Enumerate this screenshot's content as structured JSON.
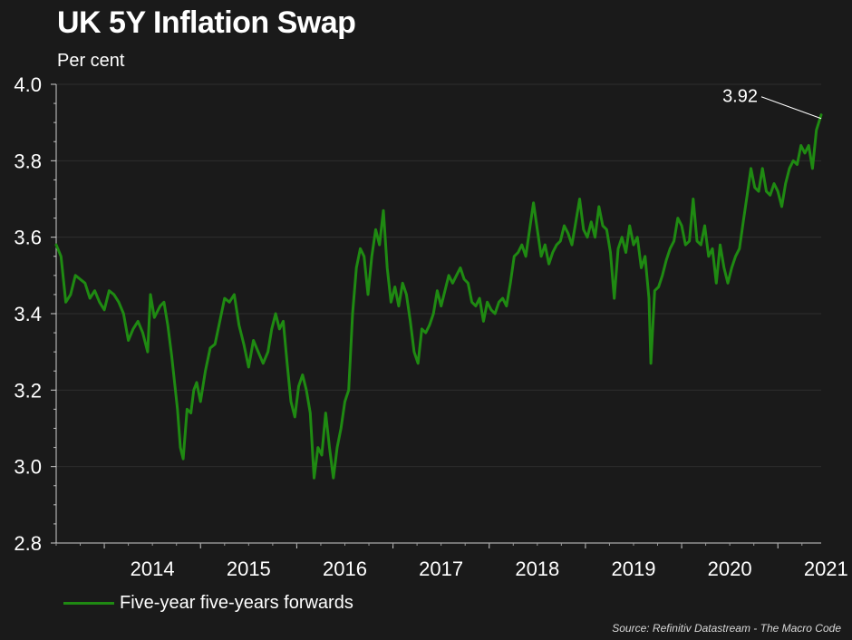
{
  "chart_data": {
    "type": "line",
    "title": "UK 5Y Inflation Swap",
    "ylabel": "Per cent",
    "ylim": [
      2.8,
      4.0
    ],
    "yticks": [
      "2.8",
      "3.0",
      "3.2",
      "3.4",
      "3.6",
      "3.8",
      "4.0"
    ],
    "xlim": [
      2013.5,
      2021.45
    ],
    "xticks": [
      "2014",
      "2015",
      "2016",
      "2017",
      "2018",
      "2019",
      "2020",
      "2021"
    ],
    "grid": true,
    "legend_position": "bottom-left",
    "series": [
      {
        "name": "Five-year five-years forwards",
        "color": "#1f8a12",
        "points": [
          [
            2013.5,
            3.58
          ],
          [
            2013.55,
            3.55
          ],
          [
            2013.6,
            3.43
          ],
          [
            2013.65,
            3.45
          ],
          [
            2013.7,
            3.5
          ],
          [
            2013.8,
            3.48
          ],
          [
            2013.85,
            3.44
          ],
          [
            2013.9,
            3.46
          ],
          [
            2013.95,
            3.43
          ],
          [
            2014.0,
            3.41
          ],
          [
            2014.05,
            3.46
          ],
          [
            2014.1,
            3.45
          ],
          [
            2014.15,
            3.43
          ],
          [
            2014.2,
            3.4
          ],
          [
            2014.25,
            3.33
          ],
          [
            2014.3,
            3.36
          ],
          [
            2014.35,
            3.38
          ],
          [
            2014.4,
            3.35
          ],
          [
            2014.45,
            3.3
          ],
          [
            2014.48,
            3.45
          ],
          [
            2014.52,
            3.39
          ],
          [
            2014.58,
            3.42
          ],
          [
            2014.62,
            3.43
          ],
          [
            2014.66,
            3.37
          ],
          [
            2014.7,
            3.29
          ],
          [
            2014.73,
            3.22
          ],
          [
            2014.76,
            3.15
          ],
          [
            2014.79,
            3.05
          ],
          [
            2014.82,
            3.02
          ],
          [
            2014.86,
            3.15
          ],
          [
            2014.9,
            3.14
          ],
          [
            2014.93,
            3.2
          ],
          [
            2014.96,
            3.22
          ],
          [
            2015.0,
            3.17
          ],
          [
            2015.05,
            3.25
          ],
          [
            2015.1,
            3.31
          ],
          [
            2015.15,
            3.32
          ],
          [
            2015.2,
            3.38
          ],
          [
            2015.25,
            3.44
          ],
          [
            2015.3,
            3.43
          ],
          [
            2015.35,
            3.45
          ],
          [
            2015.4,
            3.37
          ],
          [
            2015.45,
            3.32
          ],
          [
            2015.5,
            3.26
          ],
          [
            2015.55,
            3.33
          ],
          [
            2015.6,
            3.3
          ],
          [
            2015.65,
            3.27
          ],
          [
            2015.7,
            3.3
          ],
          [
            2015.74,
            3.36
          ],
          [
            2015.78,
            3.4
          ],
          [
            2015.82,
            3.36
          ],
          [
            2015.86,
            3.38
          ],
          [
            2015.9,
            3.27
          ],
          [
            2015.94,
            3.17
          ],
          [
            2015.98,
            3.13
          ],
          [
            2016.02,
            3.21
          ],
          [
            2016.06,
            3.24
          ],
          [
            2016.1,
            3.2
          ],
          [
            2016.14,
            3.14
          ],
          [
            2016.18,
            2.97
          ],
          [
            2016.22,
            3.05
          ],
          [
            2016.26,
            3.03
          ],
          [
            2016.3,
            3.14
          ],
          [
            2016.34,
            3.05
          ],
          [
            2016.38,
            2.97
          ],
          [
            2016.42,
            3.05
          ],
          [
            2016.46,
            3.1
          ],
          [
            2016.5,
            3.17
          ],
          [
            2016.54,
            3.2
          ],
          [
            2016.58,
            3.4
          ],
          [
            2016.62,
            3.52
          ],
          [
            2016.66,
            3.57
          ],
          [
            2016.7,
            3.55
          ],
          [
            2016.74,
            3.45
          ],
          [
            2016.78,
            3.55
          ],
          [
            2016.82,
            3.62
          ],
          [
            2016.86,
            3.58
          ],
          [
            2016.9,
            3.67
          ],
          [
            2016.94,
            3.52
          ],
          [
            2016.98,
            3.43
          ],
          [
            2017.02,
            3.47
          ],
          [
            2017.06,
            3.42
          ],
          [
            2017.1,
            3.48
          ],
          [
            2017.14,
            3.45
          ],
          [
            2017.18,
            3.38
          ],
          [
            2017.22,
            3.3
          ],
          [
            2017.26,
            3.27
          ],
          [
            2017.3,
            3.36
          ],
          [
            2017.34,
            3.35
          ],
          [
            2017.38,
            3.37
          ],
          [
            2017.42,
            3.4
          ],
          [
            2017.46,
            3.46
          ],
          [
            2017.5,
            3.42
          ],
          [
            2017.54,
            3.46
          ],
          [
            2017.58,
            3.5
          ],
          [
            2017.62,
            3.48
          ],
          [
            2017.66,
            3.5
          ],
          [
            2017.7,
            3.52
          ],
          [
            2017.74,
            3.49
          ],
          [
            2017.78,
            3.48
          ],
          [
            2017.82,
            3.43
          ],
          [
            2017.86,
            3.42
          ],
          [
            2017.9,
            3.44
          ],
          [
            2017.94,
            3.38
          ],
          [
            2017.98,
            3.43
          ],
          [
            2018.02,
            3.41
          ],
          [
            2018.06,
            3.4
          ],
          [
            2018.1,
            3.43
          ],
          [
            2018.14,
            3.44
          ],
          [
            2018.18,
            3.42
          ],
          [
            2018.22,
            3.48
          ],
          [
            2018.26,
            3.55
          ],
          [
            2018.3,
            3.56
          ],
          [
            2018.34,
            3.58
          ],
          [
            2018.38,
            3.55
          ],
          [
            2018.42,
            3.62
          ],
          [
            2018.46,
            3.69
          ],
          [
            2018.5,
            3.62
          ],
          [
            2018.54,
            3.55
          ],
          [
            2018.58,
            3.58
          ],
          [
            2018.62,
            3.53
          ],
          [
            2018.66,
            3.56
          ],
          [
            2018.7,
            3.58
          ],
          [
            2018.74,
            3.59
          ],
          [
            2018.78,
            3.63
          ],
          [
            2018.82,
            3.61
          ],
          [
            2018.86,
            3.58
          ],
          [
            2018.9,
            3.64
          ],
          [
            2018.94,
            3.7
          ],
          [
            2018.98,
            3.62
          ],
          [
            2019.02,
            3.6
          ],
          [
            2019.06,
            3.64
          ],
          [
            2019.1,
            3.6
          ],
          [
            2019.14,
            3.68
          ],
          [
            2019.18,
            3.63
          ],
          [
            2019.22,
            3.62
          ],
          [
            2019.26,
            3.56
          ],
          [
            2019.3,
            3.44
          ],
          [
            2019.34,
            3.57
          ],
          [
            2019.38,
            3.6
          ],
          [
            2019.42,
            3.56
          ],
          [
            2019.46,
            3.63
          ],
          [
            2019.5,
            3.58
          ],
          [
            2019.54,
            3.6
          ],
          [
            2019.58,
            3.52
          ],
          [
            2019.62,
            3.55
          ],
          [
            2019.66,
            3.44
          ],
          [
            2019.68,
            3.27
          ],
          [
            2019.72,
            3.46
          ],
          [
            2019.76,
            3.47
          ],
          [
            2019.8,
            3.5
          ],
          [
            2019.84,
            3.54
          ],
          [
            2019.88,
            3.57
          ],
          [
            2019.92,
            3.59
          ],
          [
            2019.96,
            3.65
          ],
          [
            2020.0,
            3.63
          ],
          [
            2020.04,
            3.58
          ],
          [
            2020.08,
            3.59
          ],
          [
            2020.12,
            3.7
          ],
          [
            2020.16,
            3.59
          ],
          [
            2020.2,
            3.58
          ],
          [
            2020.24,
            3.63
          ],
          [
            2020.28,
            3.55
          ],
          [
            2020.32,
            3.57
          ],
          [
            2020.36,
            3.48
          ],
          [
            2020.4,
            3.58
          ],
          [
            2020.44,
            3.52
          ],
          [
            2020.48,
            3.48
          ],
          [
            2020.52,
            3.52
          ],
          [
            2020.56,
            3.55
          ],
          [
            2020.6,
            3.57
          ],
          [
            2020.64,
            3.64
          ],
          [
            2020.68,
            3.71
          ],
          [
            2020.72,
            3.78
          ],
          [
            2020.76,
            3.73
          ],
          [
            2020.8,
            3.72
          ],
          [
            2020.84,
            3.78
          ],
          [
            2020.88,
            3.72
          ],
          [
            2020.92,
            3.71
          ],
          [
            2020.96,
            3.74
          ],
          [
            2021.0,
            3.72
          ],
          [
            2021.04,
            3.68
          ],
          [
            2021.08,
            3.74
          ],
          [
            2021.12,
            3.78
          ],
          [
            2021.16,
            3.8
          ],
          [
            2021.2,
            3.79
          ],
          [
            2021.24,
            3.84
          ],
          [
            2021.28,
            3.82
          ],
          [
            2021.32,
            3.84
          ],
          [
            2021.36,
            3.78
          ],
          [
            2021.4,
            3.88
          ],
          [
            2021.45,
            3.92
          ]
        ]
      }
    ],
    "annotations": [
      {
        "text": "3.92",
        "x": 2021.45,
        "y": 3.92
      }
    ]
  },
  "source": "Source: Refinitiv Datastream - The Macro Code"
}
